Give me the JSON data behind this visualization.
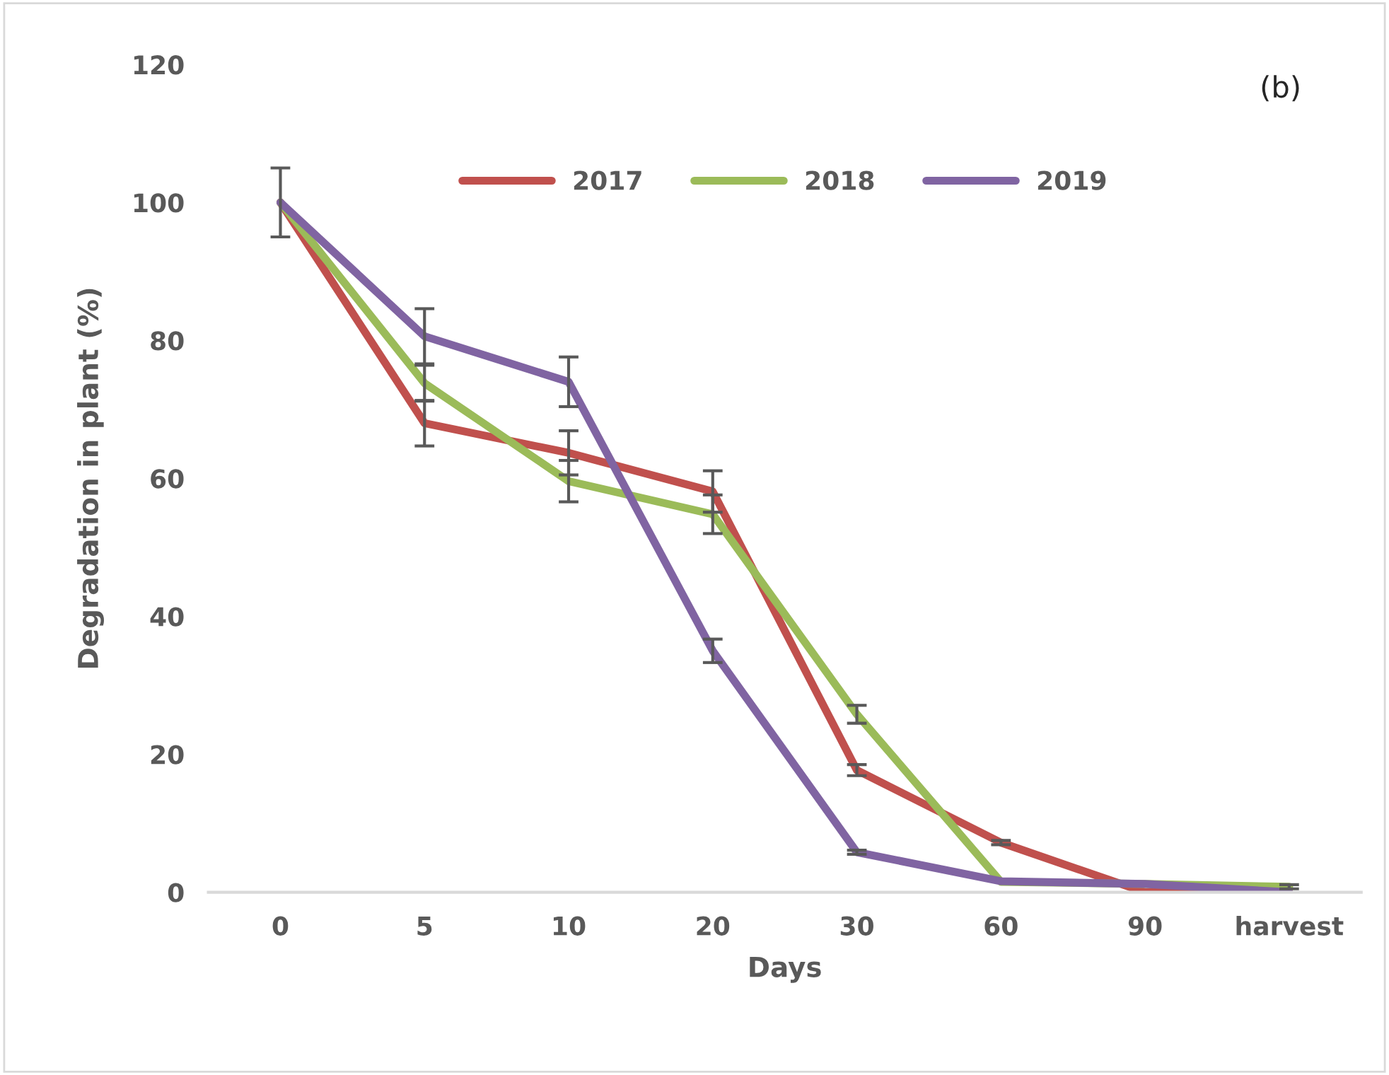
{
  "chart_data": {
    "type": "line",
    "xlabel": "Days",
    "ylabel": "Degradation in plant (%)",
    "categories": [
      "0",
      "5",
      "10",
      "20",
      "30",
      "60",
      "90",
      "harvest"
    ],
    "series": [
      {
        "name": "2017",
        "color": "#c0504d",
        "values": [
          100,
          68,
          63.7,
          58.1,
          17.7,
          7.2,
          0,
          0.5
        ],
        "errors": [
          null,
          3.3,
          3.2,
          3,
          0.8,
          0.3,
          null,
          null
        ]
      },
      {
        "name": "2018",
        "color": "#9bbb59",
        "values": [
          100,
          73.8,
          59.6,
          54.8,
          25.8,
          1.5,
          1.2,
          0.8
        ],
        "errors": [
          null,
          2.6,
          3,
          2.8,
          1.3,
          null,
          null,
          0.3
        ]
      },
      {
        "name": "2019",
        "color": "#8064a2",
        "values": [
          100,
          80.6,
          74,
          35,
          5.8,
          1.6,
          1.2,
          0
        ],
        "errors": [
          5,
          4,
          3.6,
          1.7,
          0.3,
          null,
          null,
          null
        ]
      }
    ],
    "ylim": [
      0,
      120
    ],
    "yticks": [
      0,
      20,
      40,
      60,
      80,
      100,
      120
    ],
    "annotations": [
      "(b)"
    ],
    "legend": "top",
    "grid": false,
    "marker": "none",
    "line_style": "solid"
  }
}
